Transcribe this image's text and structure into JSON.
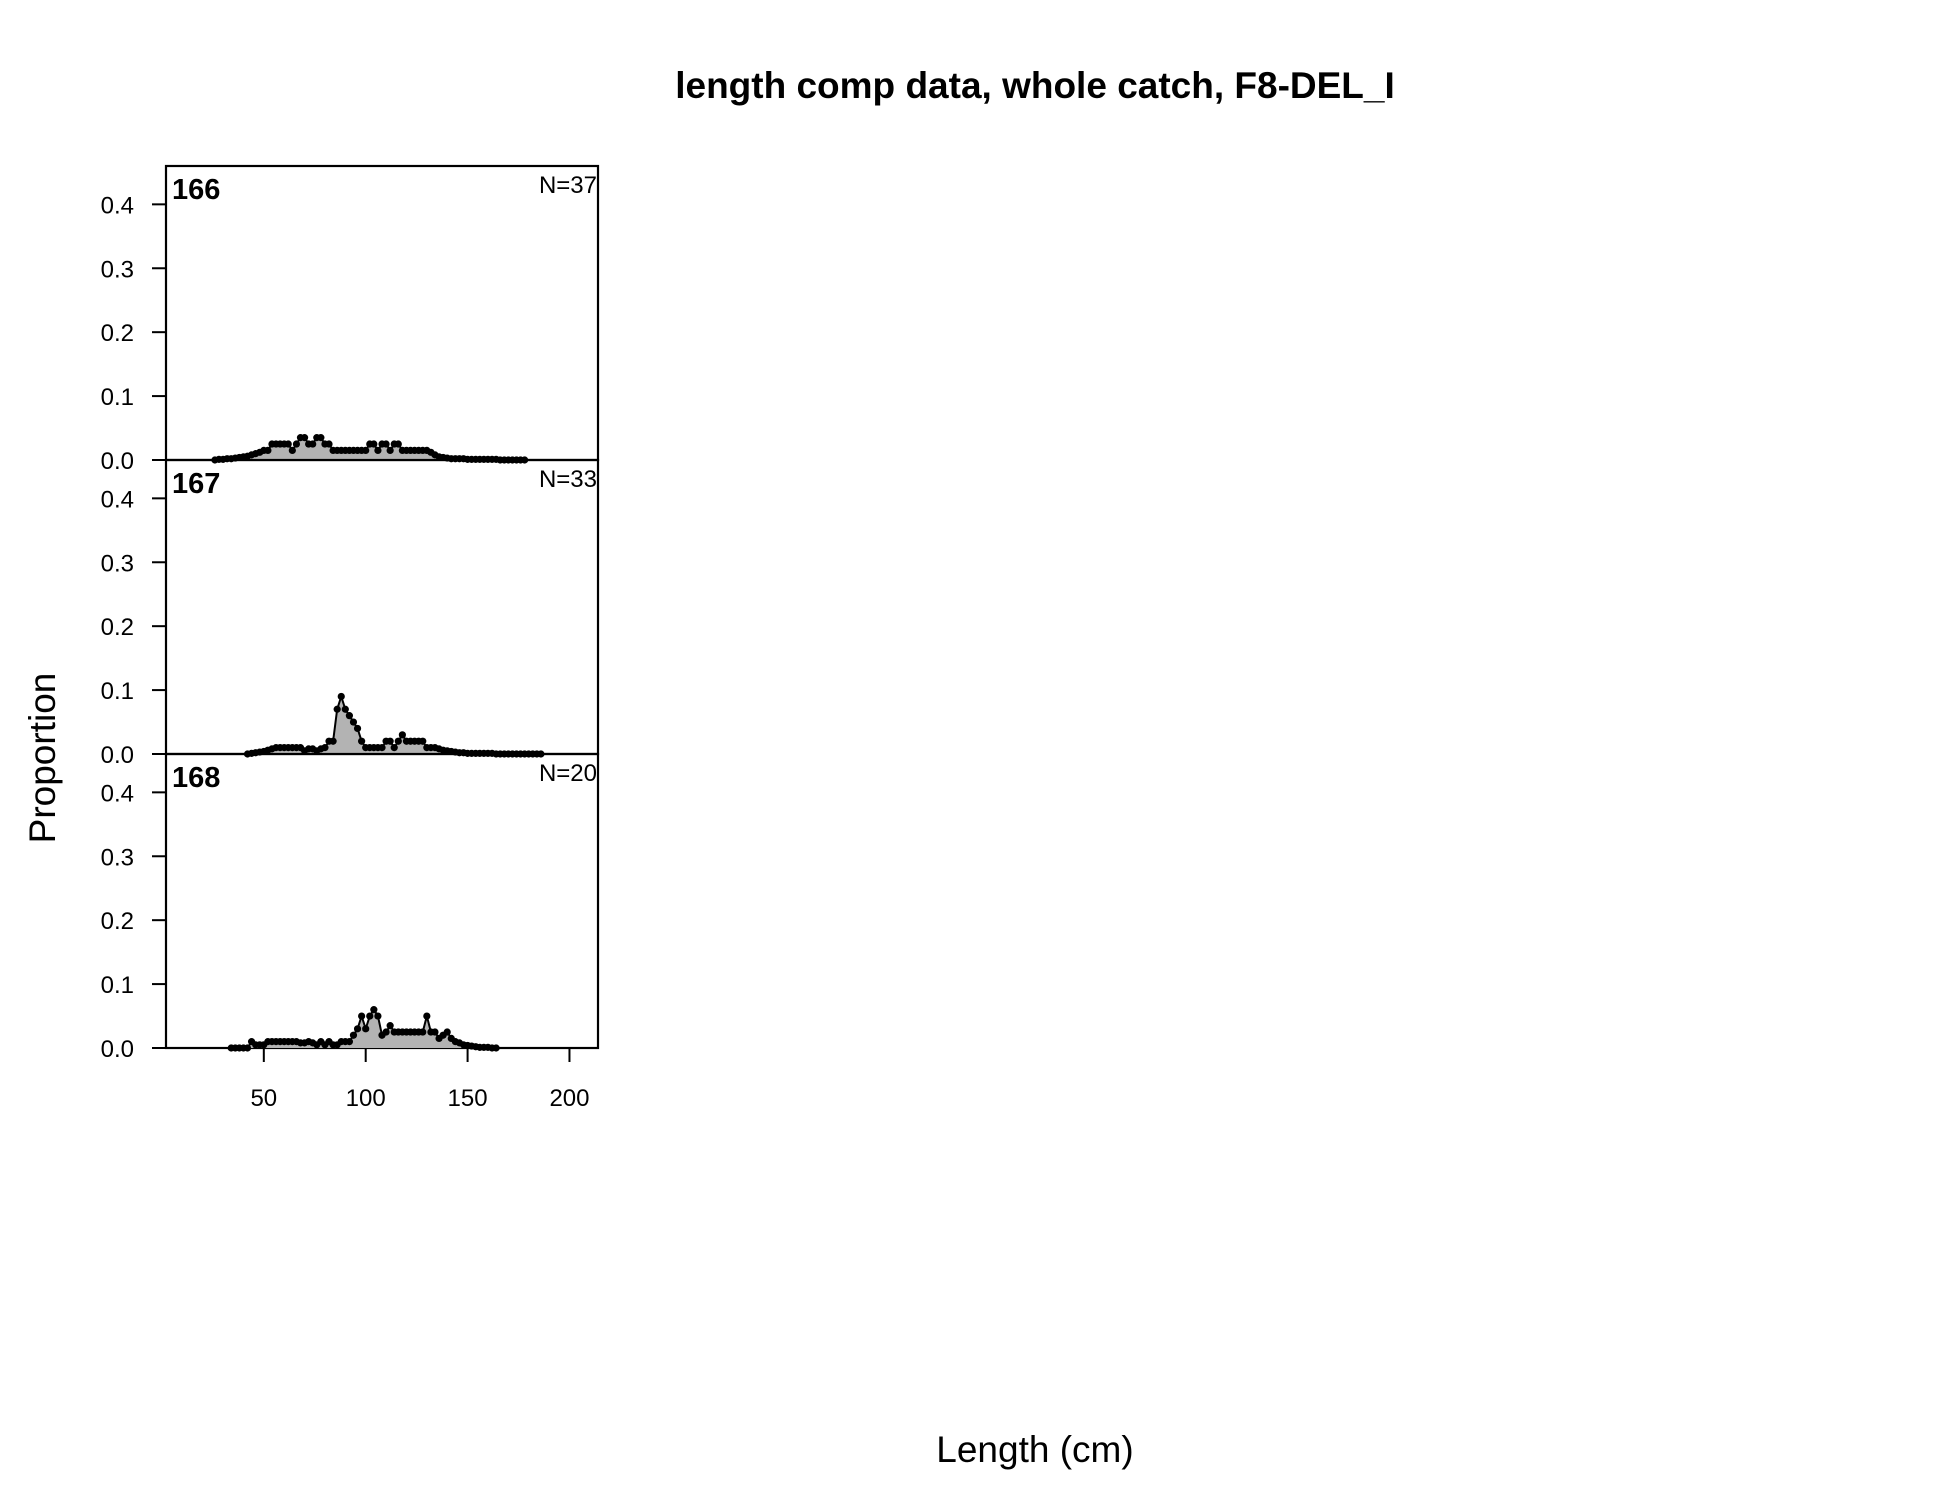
{
  "chart_data": {
    "type": "area",
    "title": "length comp data, whole catch, F8-DEL_I",
    "xlabel": "Length (cm)",
    "ylabel": "Proportion",
    "xlim": [
      2,
      214
    ],
    "ylim": [
      0,
      0.46
    ],
    "x_ticks": [
      50,
      100,
      150,
      200
    ],
    "y_ticks": [
      "0.0",
      "0.1",
      "0.2",
      "0.3",
      "0.4"
    ],
    "fill_color": "#b3b3b3",
    "line_color": "#000000",
    "panels": [
      {
        "label": "166",
        "n_label": "N=37",
        "x": [
          26,
          28,
          30,
          32,
          34,
          36,
          38,
          40,
          42,
          44,
          46,
          48,
          50,
          52,
          54,
          56,
          58,
          60,
          62,
          64,
          66,
          68,
          70,
          72,
          74,
          76,
          78,
          80,
          82,
          84,
          86,
          88,
          90,
          92,
          94,
          96,
          98,
          100,
          102,
          104,
          106,
          108,
          110,
          112,
          114,
          116,
          118,
          120,
          122,
          124,
          126,
          128,
          130,
          132,
          134,
          136,
          138,
          140,
          142,
          144,
          146,
          148,
          150,
          152,
          154,
          156,
          158,
          160,
          162,
          164,
          166,
          168,
          170,
          172,
          174,
          176,
          178
        ],
        "y": [
          0.0,
          0.001,
          0.001,
          0.002,
          0.002,
          0.003,
          0.004,
          0.005,
          0.006,
          0.008,
          0.01,
          0.012,
          0.015,
          0.015,
          0.025,
          0.025,
          0.025,
          0.025,
          0.025,
          0.015,
          0.025,
          0.035,
          0.035,
          0.025,
          0.025,
          0.035,
          0.035,
          0.025,
          0.025,
          0.015,
          0.015,
          0.015,
          0.015,
          0.015,
          0.015,
          0.015,
          0.015,
          0.015,
          0.025,
          0.025,
          0.015,
          0.025,
          0.025,
          0.015,
          0.025,
          0.025,
          0.015,
          0.015,
          0.015,
          0.015,
          0.015,
          0.015,
          0.015,
          0.012,
          0.008,
          0.005,
          0.004,
          0.003,
          0.002,
          0.002,
          0.002,
          0.002,
          0.001,
          0.001,
          0.001,
          0.001,
          0.001,
          0.001,
          0.001,
          0.001,
          0.0,
          0.0,
          0.0,
          0.0,
          0.0,
          0.0,
          0.0
        ]
      },
      {
        "label": "167",
        "n_label": "N=33",
        "x": [
          42,
          44,
          46,
          48,
          50,
          52,
          54,
          56,
          58,
          60,
          62,
          64,
          66,
          68,
          70,
          72,
          74,
          76,
          78,
          80,
          82,
          84,
          86,
          88,
          90,
          92,
          94,
          96,
          98,
          100,
          102,
          104,
          106,
          108,
          110,
          112,
          114,
          116,
          118,
          120,
          122,
          124,
          126,
          128,
          130,
          132,
          134,
          136,
          138,
          140,
          142,
          144,
          146,
          148,
          150,
          152,
          154,
          156,
          158,
          160,
          162,
          164,
          166,
          168,
          170,
          172,
          174,
          176,
          178,
          180,
          182,
          184,
          186
        ],
        "y": [
          0.0,
          0.001,
          0.002,
          0.003,
          0.004,
          0.006,
          0.008,
          0.01,
          0.01,
          0.01,
          0.01,
          0.01,
          0.01,
          0.01,
          0.005,
          0.008,
          0.008,
          0.005,
          0.008,
          0.01,
          0.02,
          0.02,
          0.07,
          0.09,
          0.07,
          0.06,
          0.05,
          0.04,
          0.02,
          0.01,
          0.01,
          0.01,
          0.01,
          0.01,
          0.02,
          0.02,
          0.01,
          0.02,
          0.03,
          0.02,
          0.02,
          0.02,
          0.02,
          0.02,
          0.01,
          0.01,
          0.01,
          0.008,
          0.006,
          0.005,
          0.004,
          0.003,
          0.002,
          0.002,
          0.001,
          0.001,
          0.001,
          0.001,
          0.001,
          0.001,
          0.001,
          0.0,
          0.0,
          0.0,
          0.0,
          0.0,
          0.0,
          0.0,
          0.0,
          0.0,
          0.0,
          0.0,
          0.0
        ]
      },
      {
        "label": "168",
        "n_label": "N=20",
        "x": [
          34,
          36,
          38,
          40,
          42,
          44,
          46,
          48,
          50,
          52,
          54,
          56,
          58,
          60,
          62,
          64,
          66,
          68,
          70,
          72,
          74,
          76,
          78,
          80,
          82,
          84,
          86,
          88,
          90,
          92,
          94,
          96,
          98,
          100,
          102,
          104,
          106,
          108,
          110,
          112,
          114,
          116,
          118,
          120,
          122,
          124,
          126,
          128,
          130,
          132,
          134,
          136,
          138,
          140,
          142,
          144,
          146,
          148,
          150,
          152,
          154,
          156,
          158,
          160,
          162,
          164
        ],
        "y": [
          0.0,
          0.0,
          0.0,
          0.0,
          0.0,
          0.01,
          0.005,
          0.005,
          0.005,
          0.01,
          0.01,
          0.01,
          0.01,
          0.01,
          0.01,
          0.01,
          0.01,
          0.008,
          0.008,
          0.01,
          0.008,
          0.005,
          0.01,
          0.005,
          0.01,
          0.005,
          0.005,
          0.01,
          0.01,
          0.01,
          0.02,
          0.03,
          0.05,
          0.03,
          0.05,
          0.06,
          0.05,
          0.02,
          0.025,
          0.035,
          0.025,
          0.025,
          0.025,
          0.025,
          0.025,
          0.025,
          0.025,
          0.025,
          0.05,
          0.025,
          0.025,
          0.015,
          0.02,
          0.025,
          0.015,
          0.01,
          0.008,
          0.005,
          0.004,
          0.003,
          0.002,
          0.001,
          0.001,
          0.001,
          0.0,
          0.0
        ]
      }
    ]
  }
}
